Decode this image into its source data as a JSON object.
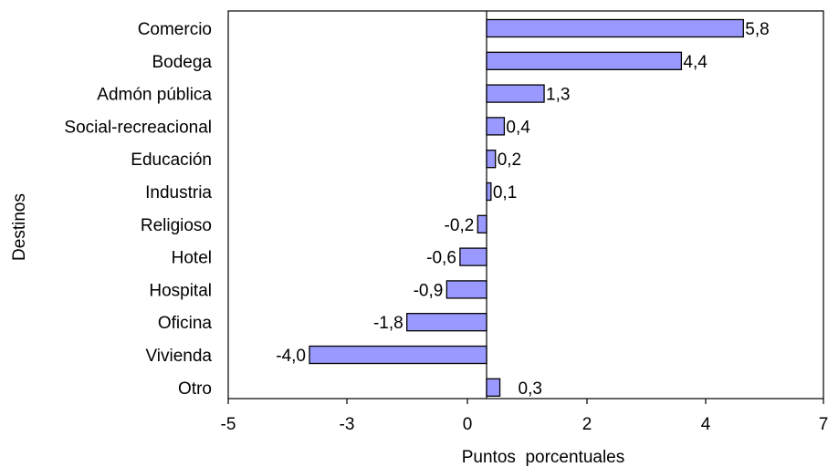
{
  "chart_data": {
    "type": "bar",
    "orientation": "horizontal",
    "categories": [
      "Comercio",
      "Bodega",
      "Admón pública",
      "Social-recreacional",
      "Educación",
      "Industria",
      "Religioso",
      "Hotel",
      "Hospital",
      "Oficina",
      "Vivienda",
      "Otro"
    ],
    "values": [
      5.8,
      4.4,
      1.3,
      0.4,
      0.2,
      0.1,
      -0.2,
      -0.6,
      -0.9,
      -1.8,
      -4.0,
      0.3
    ],
    "value_labels": [
      "5,8",
      "4,4",
      "1,3",
      "0,4",
      "0,2",
      "0,1",
      "-0,2",
      "-0,6",
      "-0,9",
      "-1,8",
      "-4,0",
      "0,3"
    ],
    "xlabel": "Puntos  porcentuales",
    "ylabel": "Destinos",
    "xticks": [
      {
        "value": -5,
        "label": "-5"
      },
      {
        "value": -3,
        "label": "-3"
      },
      {
        "value": 0,
        "label": "0"
      },
      {
        "value": 2,
        "label": "2"
      },
      {
        "value": 4,
        "label": "4"
      },
      {
        "value": 7,
        "label": "7"
      }
    ],
    "grid": false,
    "legend": "none",
    "bar_color": "#9999ff",
    "bar_stroke": "#000000"
  }
}
